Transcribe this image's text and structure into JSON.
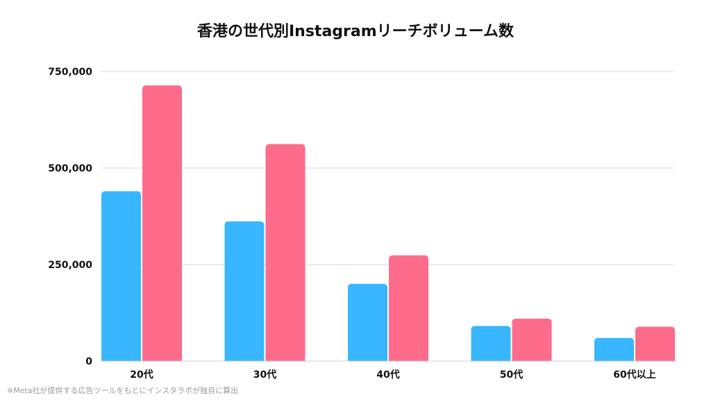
{
  "chart_data": {
    "type": "bar",
    "title": "香港の世代別Instagramリーチボリューム数",
    "categories": [
      "20代",
      "30代",
      "40代",
      "50代",
      "60代以上"
    ],
    "series": [
      {
        "color": "#38b6ff",
        "values": [
          440000,
          362000,
          200000,
          91000,
          60000
        ]
      },
      {
        "color": "#ff6b8a",
        "values": [
          714000,
          562000,
          274000,
          110000,
          89000
        ]
      }
    ],
    "yticks": [
      0,
      250000,
      500000,
      750000
    ],
    "ytick_labels": [
      "0",
      "250,000",
      "500,000",
      "750,000"
    ],
    "ylim": [
      0,
      750000
    ],
    "grid": true,
    "legend": "none"
  },
  "footnote": "※Meta社が提供する広告ツールをもとにインスタラボが独自に算出"
}
